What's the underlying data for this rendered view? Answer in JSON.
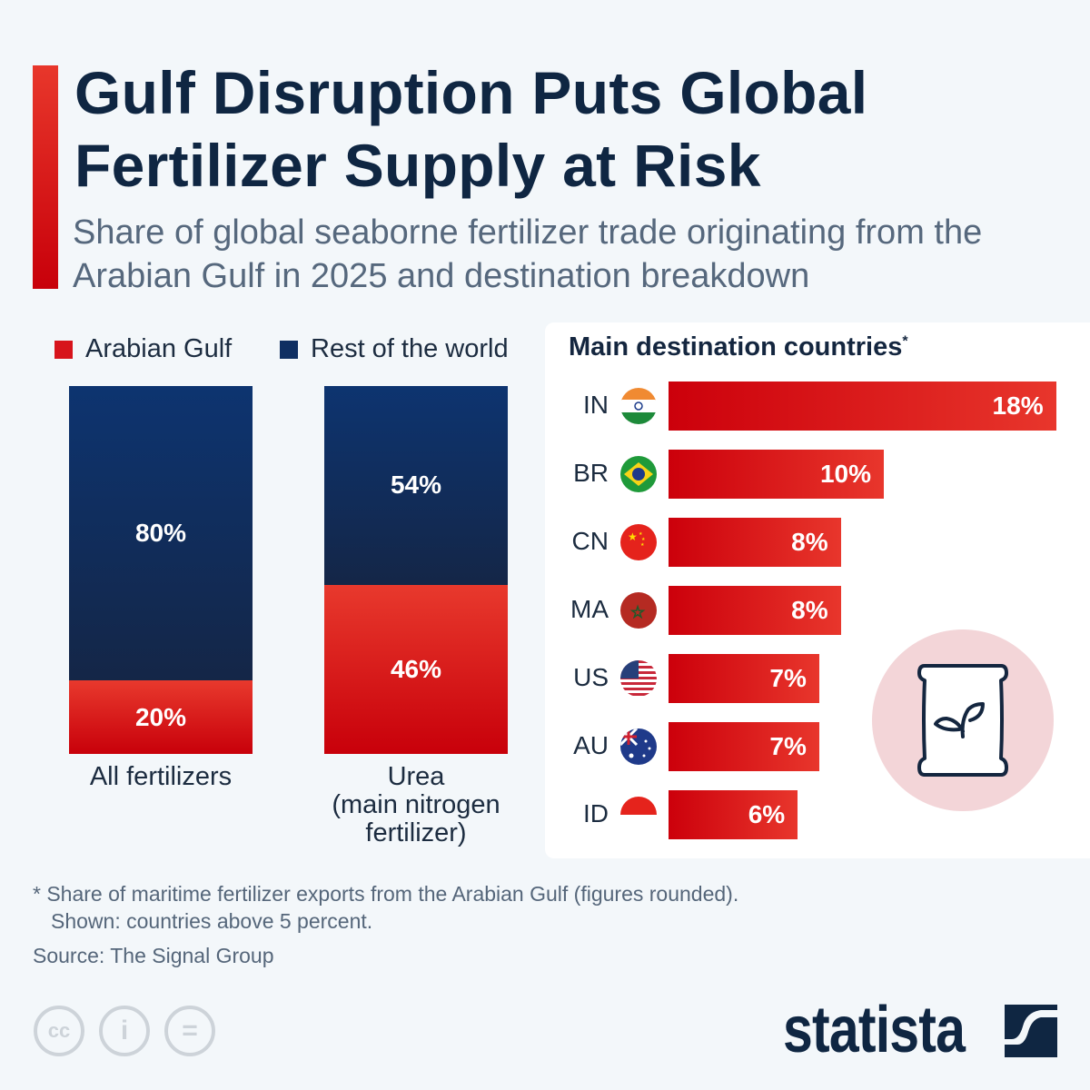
{
  "title": "Gulf Disruption Puts Global Fertilizer Supply at Risk",
  "subtitle": "Share of global seaborne fertilizer trade originating from the Arabian Gulf in 2025 and destination breakdown",
  "colors": {
    "accent_red": "#d7141c",
    "navy": "#0f2642",
    "panel_bg": "#ffffff",
    "page_bg": "#f3f7fa"
  },
  "chart_data": [
    {
      "type": "bar",
      "stacked": true,
      "legend": [
        "Arabian Gulf",
        "Rest of the world"
      ],
      "legend_position": "top",
      "categories": [
        "All fertilizers",
        "Urea\n(main nitrogen\nfertilizer)"
      ],
      "series": [
        {
          "name": "Arabian Gulf",
          "values": [
            20,
            46
          ],
          "labels": [
            "20%",
            "46%"
          ],
          "color": "#d7141c"
        },
        {
          "name": "Rest of the world",
          "values": [
            80,
            54
          ],
          "labels": [
            "80%",
            "54%"
          ],
          "color": "#0f2f62"
        }
      ],
      "ylim": [
        0,
        100
      ]
    },
    {
      "type": "bar",
      "orientation": "horizontal",
      "title": "Main destination countries",
      "title_marker": "*",
      "categories": [
        "IN",
        "BR",
        "CN",
        "MA",
        "US",
        "AU",
        "ID"
      ],
      "values": [
        18,
        10,
        8,
        8,
        7,
        7,
        6
      ],
      "labels": [
        "18%",
        "10%",
        "8%",
        "8%",
        "7%",
        "7%",
        "6%"
      ],
      "flag_icons": [
        "india-flag",
        "brazil-flag",
        "china-flag",
        "morocco-flag",
        "usa-flag",
        "australia-flag",
        "indonesia-flag"
      ],
      "color": "#d7141c"
    }
  ],
  "decoration_icon": "fertilizer-bag-with-sprout-icon",
  "footnote_1": "* Share of maritime fertilizer exports from the Arabian Gulf (figures rounded).",
  "footnote_2": "Shown: countries above 5 percent.",
  "source": "Source: The Signal Group",
  "license_icons": {
    "cc": "cc",
    "by": "i",
    "nd": "="
  },
  "logo": "statista"
}
